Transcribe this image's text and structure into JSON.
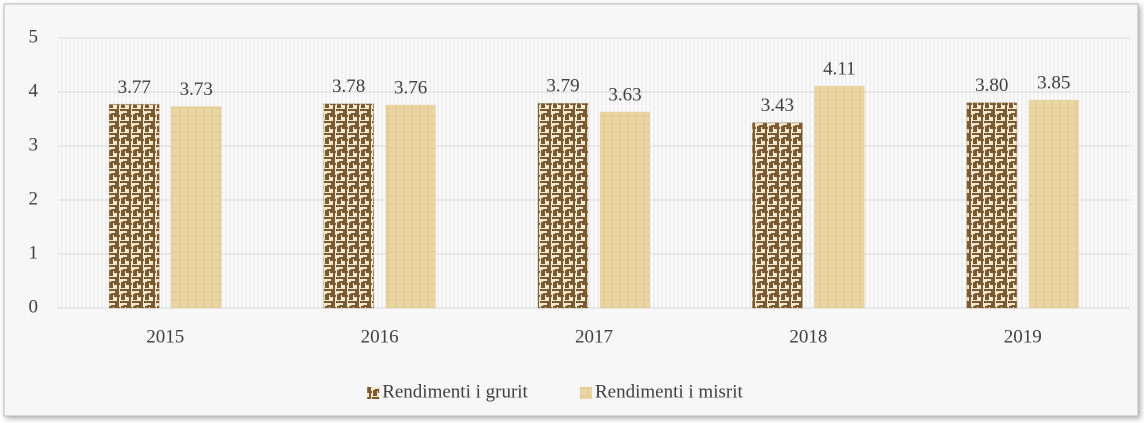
{
  "chart_data": {
    "type": "bar",
    "categories": [
      "2015",
      "2016",
      "2017",
      "2018",
      "2019"
    ],
    "series": [
      {
        "name": "Rendimenti i grurit",
        "color": "#8b6a3c",
        "values": [
          3.77,
          3.78,
          3.79,
          3.43,
          3.8
        ],
        "value_labels": [
          "3.77",
          "3.78",
          "3.79",
          "3.43",
          "3.80"
        ]
      },
      {
        "name": "Rendimenti i misrit",
        "color": "#e8d2a0",
        "values": [
          3.73,
          3.76,
          3.63,
          4.11,
          3.85
        ],
        "value_labels": [
          "3.73",
          "3.76",
          "3.63",
          "4.11",
          "3.85"
        ]
      }
    ],
    "ylim": [
      0,
      5
    ],
    "yticks": [
      0,
      1,
      2,
      3,
      4,
      5
    ],
    "grid": true,
    "legend": "bottom"
  }
}
